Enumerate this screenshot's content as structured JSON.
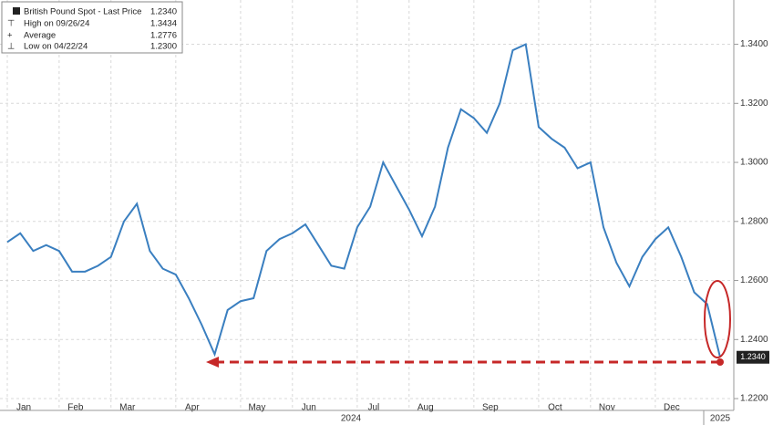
{
  "chart_data": {
    "type": "line",
    "legend": [
      {
        "label": "British Pound Spot - Last Price",
        "value": "1.2340"
      },
      {
        "label": "High on 09/26/24",
        "value": "1.3434"
      },
      {
        "label": "Average",
        "value": "1.2776"
      },
      {
        "label": "Low on 04/22/24",
        "value": "1.2300"
      }
    ],
    "categories": [
      "Jan",
      null,
      null,
      null,
      "Feb",
      null,
      null,
      null,
      "Mar",
      null,
      null,
      null,
      null,
      "Apr",
      null,
      null,
      null,
      null,
      "May",
      null,
      null,
      null,
      "Jun",
      null,
      null,
      null,
      null,
      "Jul",
      null,
      null,
      null,
      "Aug",
      null,
      null,
      null,
      null,
      "Sep",
      null,
      null,
      null,
      null,
      "Oct",
      null,
      null,
      null,
      "Nov",
      null,
      null,
      null,
      null,
      "Dec",
      null,
      null,
      null,
      null,
      null
    ],
    "series": [
      {
        "name": "British Pound Spot - Last Price",
        "color": "#3a7fc0",
        "values": [
          1.273,
          1.276,
          1.27,
          1.272,
          1.27,
          1.263,
          1.263,
          1.265,
          1.268,
          1.28,
          1.286,
          1.27,
          1.264,
          1.262,
          1.254,
          1.245,
          1.235,
          1.25,
          1.253,
          1.254,
          1.27,
          1.274,
          1.276,
          1.279,
          1.272,
          1.265,
          1.264,
          1.278,
          1.285,
          1.3,
          1.292,
          1.284,
          1.275,
          1.285,
          1.305,
          1.318,
          1.315,
          1.31,
          1.32,
          1.338,
          1.34,
          1.312,
          1.308,
          1.305,
          1.298,
          1.3,
          1.278,
          1.266,
          1.258,
          1.268,
          1.274,
          1.278,
          1.268,
          1.256,
          1.252,
          1.234
        ]
      }
    ],
    "year_labels": [
      "2024",
      "2025"
    ],
    "ylim": [
      1.216,
      1.355
    ],
    "yticks": [
      {
        "value": 1.22,
        "label": "1.2200"
      },
      {
        "value": 1.24,
        "label": "1.2400"
      },
      {
        "value": 1.26,
        "label": "1.2600"
      },
      {
        "value": 1.28,
        "label": "1.2800"
      },
      {
        "value": 1.3,
        "label": "1.3000"
      },
      {
        "value": 1.32,
        "label": "1.3200"
      },
      {
        "value": 1.34,
        "label": "1.3400"
      }
    ],
    "grid": true
  }
}
